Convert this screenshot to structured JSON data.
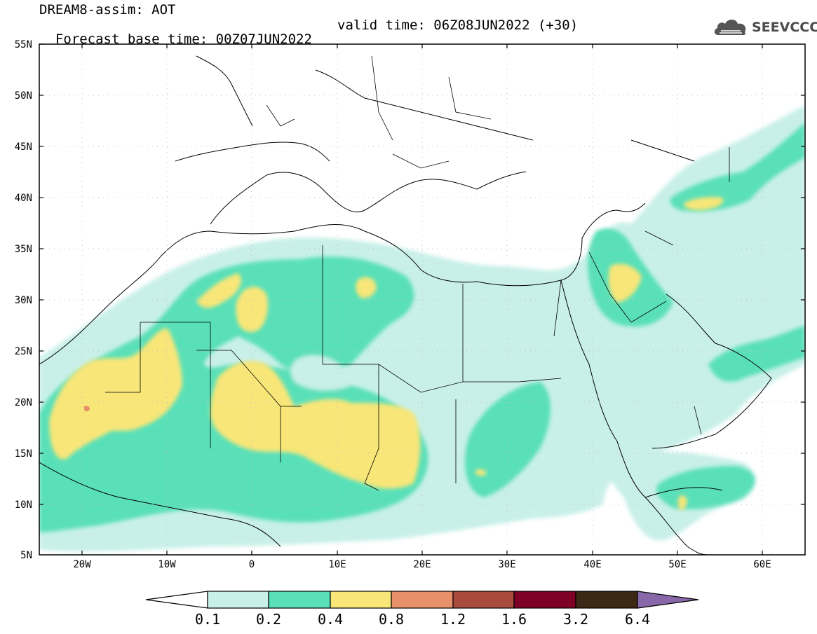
{
  "header": {
    "title": "DREAM8-assim: AOT",
    "base_time": "Forecast base time: 00Z07JUN2022",
    "valid_time": "valid time: 06Z08JUN2022 (+30)"
  },
  "logo": {
    "icon": "cloud-logo-icon",
    "text": "SEEVCCC"
  },
  "map": {
    "lat_labels": [
      "55N",
      "50N",
      "45N",
      "40N",
      "35N",
      "30N",
      "25N",
      "20N",
      "15N",
      "10N",
      "5N"
    ],
    "lon_labels": [
      "20W",
      "10W",
      "0",
      "10E",
      "20E",
      "30E",
      "40E",
      "50E",
      "60E"
    ],
    "lat_range": [
      5,
      55
    ],
    "lon_range": [
      -25,
      65
    ],
    "grid": "dotted"
  },
  "colorbar": {
    "labels": [
      "0.1",
      "0.2",
      "0.4",
      "0.8",
      "1.2",
      "1.6",
      "3.2",
      "6.4"
    ],
    "colors": [
      "#ffffff",
      "#c8f0e8",
      "#5ae0b8",
      "#f8e678",
      "#e8906a",
      "#a84a3c",
      "#7e0026",
      "#3c2814",
      "#8868a8"
    ]
  }
}
